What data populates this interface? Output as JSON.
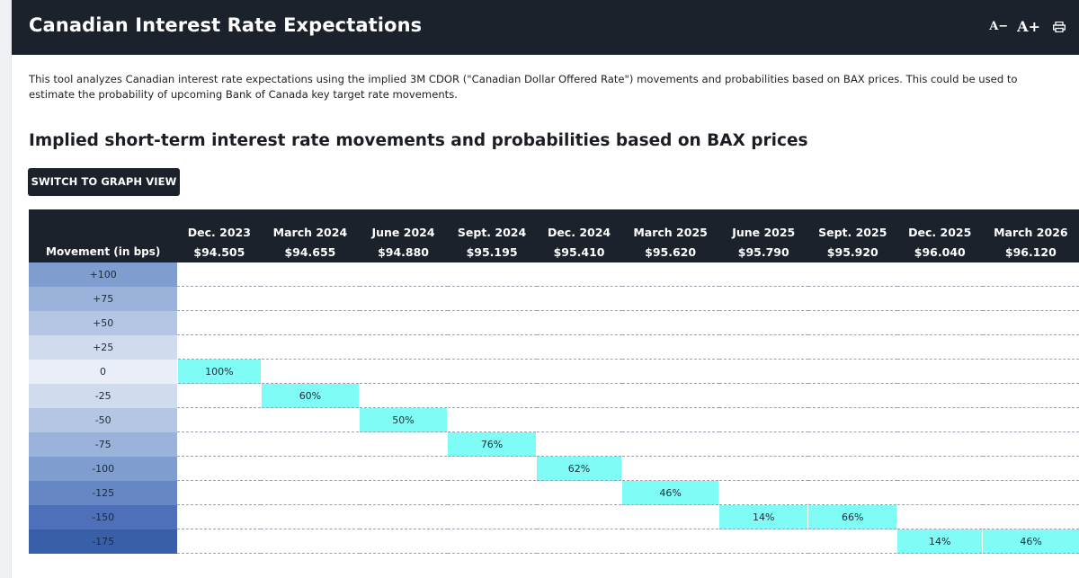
{
  "header": {
    "title": "Canadian Interest Rate Expectations",
    "font_decrease_label": "A−",
    "font_increase_label": "A+"
  },
  "intro_text": "This tool analyzes Canadian interest rate expectations using the implied 3M CDOR (\"Canadian Dollar Offered Rate\") movements and probabilities based on BAX prices. This could be used to estimate the probability of upcoming Bank of Canada key target rate movements.",
  "section_title": "Implied short-term interest rate movements and probabilities based on BAX prices",
  "switch_button_label": "SWITCH TO GRAPH VIEW",
  "table": {
    "movement_header": "Movement (in bps)",
    "columns": [
      {
        "date": "Dec. 2023",
        "price": "$94.505"
      },
      {
        "date": "March 2024",
        "price": "$94.655"
      },
      {
        "date": "June 2024",
        "price": "$94.880"
      },
      {
        "date": "Sept. 2024",
        "price": "$95.195"
      },
      {
        "date": "Dec. 2024",
        "price": "$95.410"
      },
      {
        "date": "March 2025",
        "price": "$95.620"
      },
      {
        "date": "June 2025",
        "price": "$95.790"
      },
      {
        "date": "Sept. 2025",
        "price": "$95.920"
      },
      {
        "date": "Dec. 2025",
        "price": "$96.040"
      },
      {
        "date": "March 2026",
        "price": "$96.120"
      }
    ],
    "rows": [
      {
        "movement": "+100",
        "color": "#7f9dcf",
        "cells": [
          "",
          "",
          "",
          "",
          "",
          "",
          "",
          "",
          "",
          ""
        ]
      },
      {
        "movement": "+75",
        "color": "#9bb3db",
        "cells": [
          "",
          "",
          "",
          "",
          "",
          "",
          "",
          "",
          "",
          ""
        ]
      },
      {
        "movement": "+50",
        "color": "#b5c6e4",
        "cells": [
          "",
          "",
          "",
          "",
          "",
          "",
          "",
          "",
          "",
          ""
        ]
      },
      {
        "movement": "+25",
        "color": "#d0dbee",
        "cells": [
          "",
          "",
          "",
          "",
          "",
          "",
          "",
          "",
          "",
          ""
        ]
      },
      {
        "movement": "0",
        "color": "#e9eef8",
        "cells": [
          "100%",
          "",
          "",
          "",
          "",
          "",
          "",
          "",
          "",
          ""
        ]
      },
      {
        "movement": "-25",
        "color": "#d0dbee",
        "cells": [
          "",
          "60%",
          "",
          "",
          "",
          "",
          "",
          "",
          "",
          ""
        ]
      },
      {
        "movement": "-50",
        "color": "#b5c6e4",
        "cells": [
          "",
          "",
          "50%",
          "",
          "",
          "",
          "",
          "",
          "",
          ""
        ]
      },
      {
        "movement": "-75",
        "color": "#9bb3db",
        "cells": [
          "",
          "",
          "",
          "76%",
          "",
          "",
          "",
          "",
          "",
          ""
        ]
      },
      {
        "movement": "-100",
        "color": "#7f9dcf",
        "cells": [
          "",
          "",
          "",
          "",
          "62%",
          "",
          "",
          "",
          "",
          ""
        ]
      },
      {
        "movement": "-125",
        "color": "#6787c4",
        "cells": [
          "",
          "",
          "",
          "",
          "",
          "46%",
          "",
          "",
          "",
          ""
        ]
      },
      {
        "movement": "-150",
        "color": "#4e70b8",
        "cells": [
          "",
          "",
          "",
          "",
          "",
          "",
          "14%",
          "66%",
          "",
          ""
        ]
      },
      {
        "movement": "-175",
        "color": "#3a5fa9",
        "cells": [
          "",
          "",
          "",
          "",
          "",
          "",
          "",
          "",
          "14%",
          "46%"
        ]
      }
    ],
    "highlight_color": "#7ffcf6"
  }
}
